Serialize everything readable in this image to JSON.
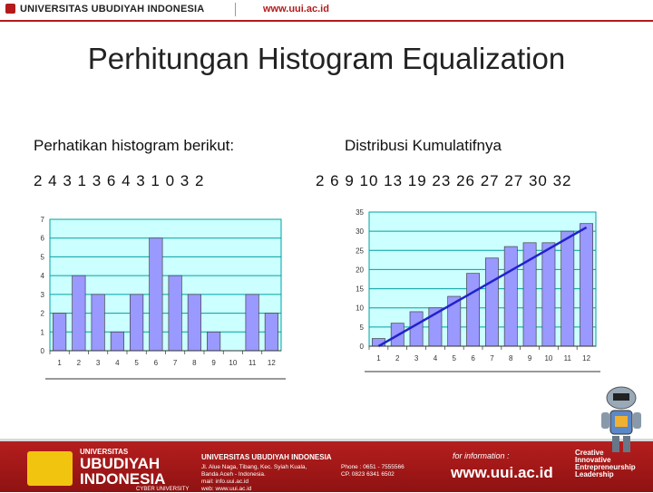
{
  "header": {
    "university": "UNIVERSITAS UBUDIYAH INDONESIA",
    "url": "www.uui.ac.id"
  },
  "slide": {
    "title": "Perhitungan Histogram Equalization",
    "left_label": "Perhatikan histogram berikut:",
    "left_sequence": "2 4 3 1 3 6 4 3 1 0 3 2",
    "right_label": "Distribusi Kumulatifnya",
    "right_sequence": "2 6 9 10 13 19 23 26 27 27 30 32"
  },
  "chart_data": [
    {
      "type": "bar",
      "title": "",
      "categories": [
        "1",
        "2",
        "3",
        "4",
        "5",
        "6",
        "7",
        "8",
        "9",
        "10",
        "11",
        "12"
      ],
      "values": [
        2,
        4,
        3,
        1,
        3,
        6,
        4,
        3,
        1,
        0,
        3,
        2
      ],
      "ylim": [
        0,
        7
      ],
      "yticks": [
        "0",
        "1",
        "2",
        "3",
        "4",
        "5",
        "6",
        "7"
      ],
      "grid": true,
      "bar_color": "#9999ff",
      "plot_bg": "#ccffff"
    },
    {
      "type": "bar",
      "title": "",
      "categories": [
        "1",
        "2",
        "3",
        "4",
        "5",
        "6",
        "7",
        "8",
        "9",
        "10",
        "11",
        "12"
      ],
      "values": [
        2,
        6,
        9,
        10,
        13,
        19,
        23,
        26,
        27,
        27,
        30,
        32
      ],
      "ylim": [
        0,
        35
      ],
      "yticks": [
        "0",
        "5",
        "10",
        "15",
        "20",
        "25",
        "30",
        "35"
      ],
      "grid": true,
      "bar_color": "#9999ff",
      "plot_bg": "#ccffff",
      "trend_line": {
        "from": [
          1,
          0
        ],
        "to": [
          12,
          31
        ],
        "color": "#2222cc"
      }
    }
  ],
  "footer": {
    "uni_small": "UNIVERSITAS",
    "uni_big1": "UBUDIYAH",
    "uni_big2": "INDONESIA",
    "cyber": "CYBER UNIVERSITY",
    "address_title": "UNIVERSITAS UBUDIYAH INDONESIA",
    "address1": "Jl. Alue Naga, Tibang, Kec. Syiah Kuala,",
    "address2": "Banda Aceh - Indonesia.",
    "address3": "mail: info.uui.ac.id",
    "address4": "web: www.uui.ac.id",
    "phone1": "Phone : 0651 - 7555566",
    "phone2": "CP. 0823 6341 6502",
    "info_label": "for information :",
    "url": "www.uui.ac.id",
    "tag1": "Creative",
    "tag2": "Innovative",
    "tag3": "Entrepreneurship",
    "tag4": "Leadership"
  },
  "colors": {
    "brand_red": "#b31b1b",
    "bar": "#9999ff",
    "plot_bg": "#ccffff",
    "grid": "#00a0a0"
  }
}
